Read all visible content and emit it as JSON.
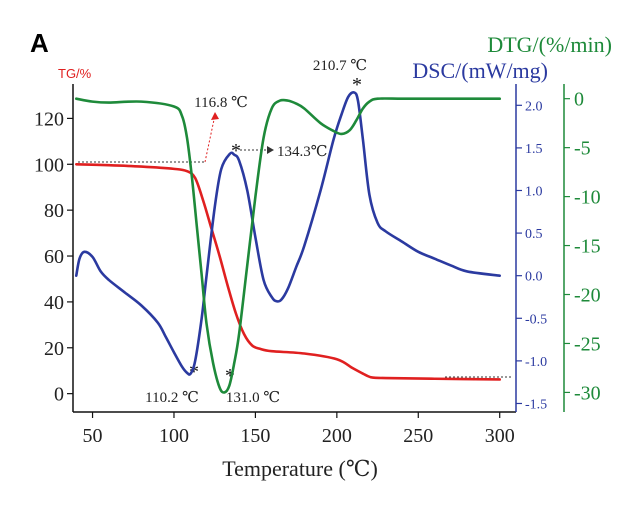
{
  "panel_label": "A",
  "chart_data": {
    "type": "line",
    "xlabel": "Temperature (℃)",
    "xlim": [
      38,
      310
    ],
    "x_ticks": [
      50,
      100,
      150,
      200,
      250,
      300
    ],
    "axes": {
      "tg": {
        "label": "TG/%",
        "color": "#e02020",
        "ylim": [
          -8,
          135
        ],
        "ticks": [
          0,
          20,
          40,
          60,
          80,
          100,
          120
        ]
      },
      "dsc": {
        "label": "DSC/(mW/mg)",
        "color": "#2b3aa0",
        "ylim": [
          -1.6,
          2.25
        ],
        "ticks": [
          -1.5,
          -1.0,
          -0.5,
          0.0,
          0.5,
          1.0,
          1.5,
          2.0
        ]
      },
      "dtg": {
        "label": "DTG/(%/min)",
        "color": "#1e8a3a",
        "ylim": [
          -32,
          1.5
        ],
        "ticks": [
          0,
          -5,
          -10,
          -15,
          -20,
          -25,
          -30
        ]
      }
    },
    "series": [
      {
        "axis": "tg",
        "color": "#e02020",
        "x": [
          40,
          60,
          80,
          100,
          108,
          113,
          118,
          123,
          128,
          133,
          138,
          143,
          148,
          153,
          160,
          180,
          200,
          210,
          218,
          222,
          230,
          260,
          300
        ],
        "y": [
          100,
          99.6,
          99,
          98,
          97,
          94,
          84,
          72,
          60,
          47,
          35,
          26,
          21,
          19.5,
          18.5,
          17.5,
          15,
          11,
          8,
          7,
          6.8,
          6.5,
          6.2
        ]
      },
      {
        "axis": "dsc",
        "color": "#2b3aa0",
        "x": [
          40,
          42,
          45,
          50,
          55,
          60,
          70,
          80,
          90,
          95,
          100,
          105,
          108,
          110.2,
          113,
          117,
          120,
          125,
          129,
          134.3,
          137,
          140,
          145,
          150,
          155,
          160,
          163,
          166,
          170,
          175,
          180,
          190,
          198,
          203,
          207,
          210.7,
          213,
          216,
          220,
          225,
          230,
          240,
          250,
          260,
          270,
          280,
          300
        ],
        "y": [
          0.0,
          0.2,
          0.28,
          0.22,
          0.05,
          -0.05,
          -0.2,
          -0.35,
          -0.55,
          -0.72,
          -0.9,
          -1.07,
          -1.14,
          -1.15,
          -1.0,
          -0.5,
          0.0,
          0.8,
          1.25,
          1.43,
          1.42,
          1.35,
          1.0,
          0.45,
          -0.05,
          -0.25,
          -0.3,
          -0.28,
          -0.15,
          0.1,
          0.35,
          1.0,
          1.6,
          1.9,
          2.1,
          2.15,
          2.05,
          1.6,
          0.95,
          0.62,
          0.52,
          0.4,
          0.28,
          0.2,
          0.12,
          0.05,
          0.0
        ]
      },
      {
        "axis": "dtg",
        "color": "#1e8a3a",
        "x": [
          40,
          50,
          60,
          80,
          100,
          105,
          108,
          111,
          114,
          117,
          120,
          124,
          128,
          131,
          134,
          137,
          140,
          145,
          150,
          155,
          160,
          165,
          170,
          175,
          180,
          190,
          198,
          203,
          208,
          212,
          216,
          220,
          225,
          240,
          260,
          300
        ],
        "y": [
          0,
          -0.3,
          -0.4,
          -0.3,
          -0.8,
          -1.8,
          -4,
          -8,
          -13,
          -18,
          -23,
          -27,
          -29.5,
          -30,
          -29.3,
          -27,
          -24,
          -17,
          -10,
          -4,
          -1,
          -0.2,
          -0.2,
          -0.5,
          -1,
          -2.5,
          -3.3,
          -3.6,
          -3.2,
          -2.2,
          -1,
          -0.3,
          0,
          0,
          0,
          0
        ]
      }
    ],
    "annotations": [
      {
        "text": "116.8 ℃",
        "x": 116.8,
        "series": "TG"
      },
      {
        "text": "134.3℃",
        "x": 134.3,
        "series": "DSC"
      },
      {
        "text": "110.2 ℃",
        "x": 110.2,
        "series": "DSC"
      },
      {
        "text": "131.0 ℃",
        "x": 131.0,
        "series": "DTG"
      },
      {
        "text": "210.7 ℃",
        "x": 210.7,
        "series": "DSC"
      }
    ]
  }
}
